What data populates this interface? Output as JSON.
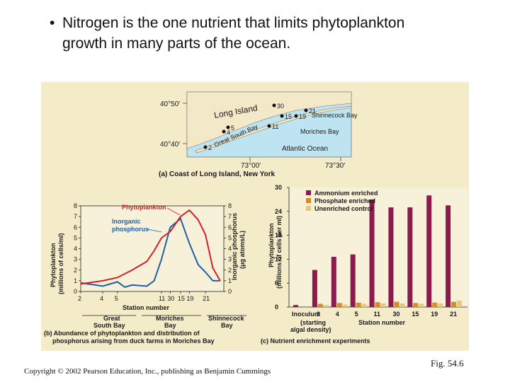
{
  "slide": {
    "bullet_symbol": "•",
    "bullet_line1": "Nitrogen is the one nutrient that limits phytoplankton",
    "bullet_line2": "growth in many parts of the ocean.",
    "copyright": "Copyright © 2002 Pearson Education, Inc., publishing as Benjamin Cummings",
    "fig_label": "Fig. 54.6"
  },
  "map": {
    "lat_top": "40°50′",
    "lat_bottom": "40°40′",
    "lon_left": "73°00′",
    "lon_right": "73°30′",
    "long_island": "Long Island",
    "great_south_bay": "Great South Bay",
    "shinnecock_bay": "Shinnecock Bay",
    "moriches_bay": "Moriches Bay",
    "atlantic_ocean": "Atlantic Ocean",
    "caption": "(a) Coast of Long Island, New York",
    "station_labels": [
      "2",
      "4",
      "5",
      "11",
      "30",
      "15",
      "19",
      "21"
    ]
  },
  "chart_data": [
    {
      "type": "line",
      "title": "(b) Abundance of phytoplankton and distribution of phosphorus arising from duck farms in Moriches Bay",
      "caption_line1": "(b) Abundance of phytoplankton and distribution of",
      "caption_line2": "phosphorus arising from duck farms in Moriches Bay",
      "xlabel": "Station number",
      "ylabel_left": "Phytoplankton (millions of cells/ml)",
      "ylabel_left_line1": "Phytoplankton",
      "ylabel_left_line2": "(millions of cells/ml)",
      "ylabel_right": "Inorganic phosphorus (μg atoms/L)",
      "ylabel_right_line1": "Inorganic phosphorus",
      "ylabel_right_line2": "(μg atoms/L)",
      "ylim": [
        0,
        8
      ],
      "xlim": [
        0,
        19.5
      ],
      "y_ticks": [
        "0",
        "1",
        "2",
        "3",
        "4",
        "5",
        "6",
        "7",
        "8"
      ],
      "x_ticks": [
        {
          "pos": 0,
          "label": "2"
        },
        {
          "pos": 3,
          "label": "4"
        },
        {
          "pos": 5,
          "label": "5"
        },
        {
          "pos": 11,
          "label": "11"
        },
        {
          "pos": 12.2,
          "label": "30"
        },
        {
          "pos": 13.6,
          "label": "15"
        },
        {
          "pos": 14.8,
          "label": "19"
        },
        {
          "pos": 17,
          "label": "21"
        }
      ],
      "series": [
        {
          "name": "Phytoplankton",
          "label_line1": "Phytoplankton",
          "color": "#d42027",
          "x": [
            0,
            3,
            5,
            7,
            9,
            10,
            11,
            12.2,
            13.6,
            14.8,
            16,
            17,
            18,
            19
          ],
          "y": [
            0.7,
            1.0,
            1.3,
            2.0,
            2.8,
            3.8,
            5.0,
            5.6,
            7.0,
            7.6,
            6.7,
            5.3,
            2.2,
            1.0
          ]
        },
        {
          "name": "Inorganic phosphorus",
          "label_line1": "Inorganic",
          "label_line2": "phosphorus",
          "color": "#1f5fa8",
          "x": [
            0,
            3,
            5,
            6,
            7,
            9,
            10,
            11,
            12.2,
            13.6,
            14.8,
            16,
            17,
            18,
            19
          ],
          "y": [
            0.8,
            0.5,
            0.9,
            0.4,
            0.6,
            0.5,
            1.0,
            3.0,
            6.0,
            6.8,
            4.5,
            2.5,
            1.8,
            1.0,
            1.0
          ]
        }
      ],
      "region_labels": [
        {
          "line1": "Great",
          "line2": "South Bay"
        },
        {
          "line1": "Moriches",
          "line2": "Bay"
        },
        {
          "line1": "Shinnecock",
          "line2": "Bay"
        }
      ]
    },
    {
      "type": "bar",
      "title": "(c) Nutrient enrichment experiments",
      "xlabel": "Station number",
      "ylabel_line1": "Phytoplankton",
      "ylabel_line2": "(millions of cells per ml)",
      "ylim": [
        0,
        30
      ],
      "y_ticks": [
        "0",
        "6",
        "12",
        "18",
        "24",
        "30"
      ],
      "categories": [
        "Inoculum",
        "2",
        "4",
        "5",
        "11",
        "30",
        "15",
        "19",
        "21"
      ],
      "category_note": [
        "(starting",
        "algal density)"
      ],
      "series": [
        {
          "name": "Ammonium enriched",
          "color": "#8b1a4e",
          "values": [
            0.5,
            9.3,
            12.6,
            13.2,
            27.0,
            25.0,
            25.0,
            28.0,
            25.5
          ]
        },
        {
          "name": "Phosphate enriched",
          "color": "#d98b22",
          "values": [
            0,
            0.8,
            1.0,
            1.1,
            1.2,
            1.3,
            1.0,
            1.1,
            1.3
          ]
        },
        {
          "name": "Unenriched control",
          "color": "#e6c97a",
          "values": [
            0,
            0.5,
            0.6,
            0.8,
            0.9,
            0.9,
            0.8,
            0.9,
            1.6
          ]
        }
      ]
    }
  ],
  "colors": {
    "panel_bg": "#f4ebc9",
    "map_water": "#bfe4f1",
    "land": "#f3e9c8",
    "plot_bg": "#f7f1d9",
    "axis": "#222222"
  }
}
